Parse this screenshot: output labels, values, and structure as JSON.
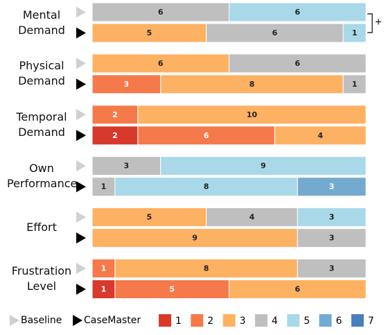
{
  "chart_data": {
    "type": "stacked-bar-horizontal",
    "categories": [
      "Mental Demand",
      "Physical Demand",
      "Temporal Demand",
      "Own Performance",
      "Effort",
      "Frustration Level"
    ],
    "conditions": [
      "Baseline",
      "CaseMaster"
    ],
    "xlim": [
      0,
      12
    ],
    "series": [
      {
        "name": "1",
        "color": "#d73a2c",
        "values": [
          [
            null,
            null
          ],
          [
            null,
            null
          ],
          [
            null,
            2
          ],
          [
            null,
            null
          ],
          [
            null,
            null
          ],
          [
            null,
            1
          ]
        ]
      },
      {
        "name": "2",
        "color": "#f47a4b",
        "values": [
          [
            null,
            null
          ],
          [
            null,
            3
          ],
          [
            2,
            6
          ],
          [
            null,
            null
          ],
          [
            null,
            null
          ],
          [
            1,
            5
          ]
        ]
      },
      {
        "name": "3",
        "color": "#fdb163",
        "values": [
          [
            null,
            5
          ],
          [
            6,
            8
          ],
          [
            10,
            4
          ],
          [
            null,
            null
          ],
          [
            5,
            9
          ],
          [
            8,
            6
          ]
        ]
      },
      {
        "name": "4",
        "color": "#bfbfbf",
        "values": [
          [
            6,
            6
          ],
          [
            6,
            1
          ],
          [
            null,
            null
          ],
          [
            3,
            1
          ],
          [
            4,
            3
          ],
          [
            3,
            null
          ]
        ]
      },
      {
        "name": "5",
        "color": "#a9d8e8",
        "values": [
          [
            6,
            1
          ],
          [
            null,
            null
          ],
          [
            null,
            null
          ],
          [
            9,
            8
          ],
          [
            3,
            null
          ],
          [
            null,
            null
          ]
        ]
      },
      {
        "name": "6",
        "color": "#74aad0",
        "values": [
          [
            null,
            null
          ],
          [
            null,
            null
          ],
          [
            null,
            null
          ],
          [
            null,
            3
          ],
          [
            null,
            null
          ],
          [
            null,
            null
          ]
        ]
      },
      {
        "name": "7",
        "color": "#4b7fba",
        "values": [
          [
            null,
            null
          ],
          [
            null,
            null
          ],
          [
            null,
            null
          ],
          [
            null,
            null
          ],
          [
            null,
            null
          ],
          [
            null,
            null
          ]
        ]
      }
    ],
    "annotations": [
      {
        "text": "+"
      }
    ]
  }
}
